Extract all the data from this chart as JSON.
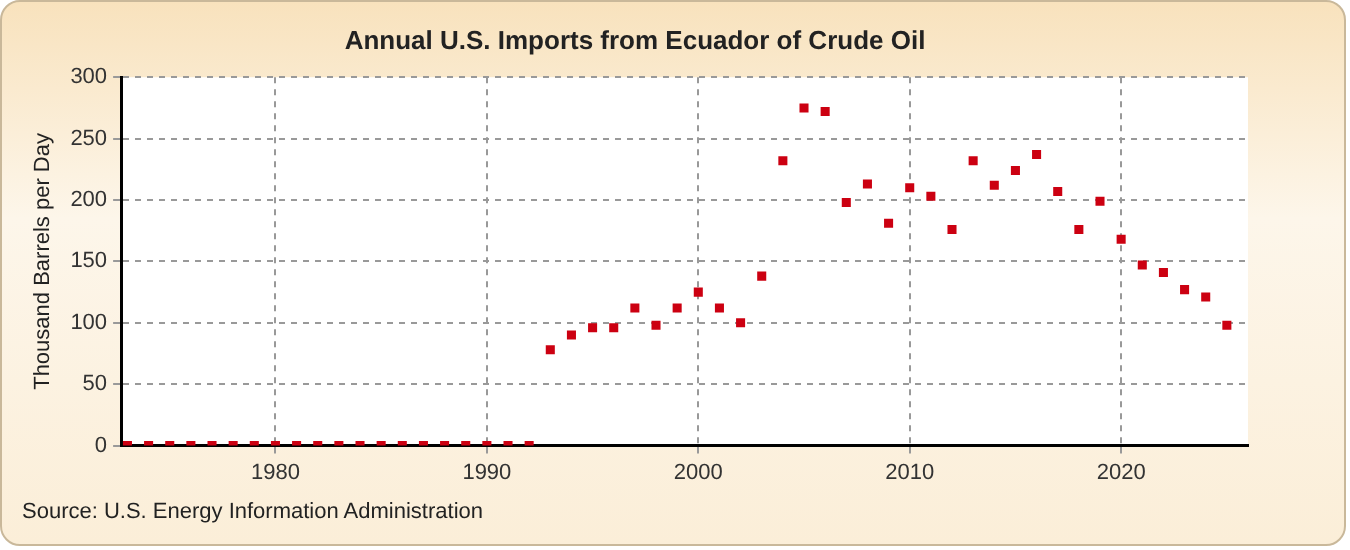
{
  "chart_data": {
    "type": "scatter",
    "title": "Annual U.S. Imports from Ecuador of Crude Oil",
    "ylabel": "Thousand Barrels per Day",
    "annotations": [
      "Source: U.S. Energy Information Administration"
    ],
    "x": [
      1973,
      1974,
      1975,
      1976,
      1977,
      1978,
      1979,
      1980,
      1981,
      1982,
      1983,
      1984,
      1985,
      1986,
      1987,
      1988,
      1989,
      1990,
      1991,
      1992,
      1993,
      1994,
      1995,
      1996,
      1997,
      1998,
      1999,
      2000,
      2001,
      2002,
      2003,
      2004,
      2005,
      2006,
      2007,
      2008,
      2009,
      2010,
      2011,
      2012,
      2013,
      2014,
      2015,
      2016,
      2017,
      2018,
      2019,
      2020,
      2021,
      2022,
      2023,
      2024,
      2025
    ],
    "series": [
      {
        "color": "#cc0011",
        "values": [
          0,
          0,
          0,
          0,
          0,
          0,
          0,
          0,
          0,
          0,
          0,
          0,
          0,
          0,
          0,
          0,
          0,
          0,
          0,
          0,
          78,
          90,
          96,
          96,
          112,
          98,
          112,
          125,
          112,
          100,
          138,
          232,
          275,
          272,
          198,
          213,
          181,
          210,
          203,
          176,
          232,
          212,
          224,
          237,
          207,
          176,
          199,
          168,
          147,
          141,
          127,
          121,
          98
        ]
      }
    ],
    "xlim": [
      1972.7,
      2026
    ],
    "xticks": [
      1980,
      1990,
      2000,
      2010,
      2020
    ],
    "ylim": [
      0,
      300
    ],
    "yticks": [
      0,
      50,
      100,
      150,
      200,
      250,
      300
    ],
    "grid": true,
    "legend": false,
    "marker": "square"
  }
}
